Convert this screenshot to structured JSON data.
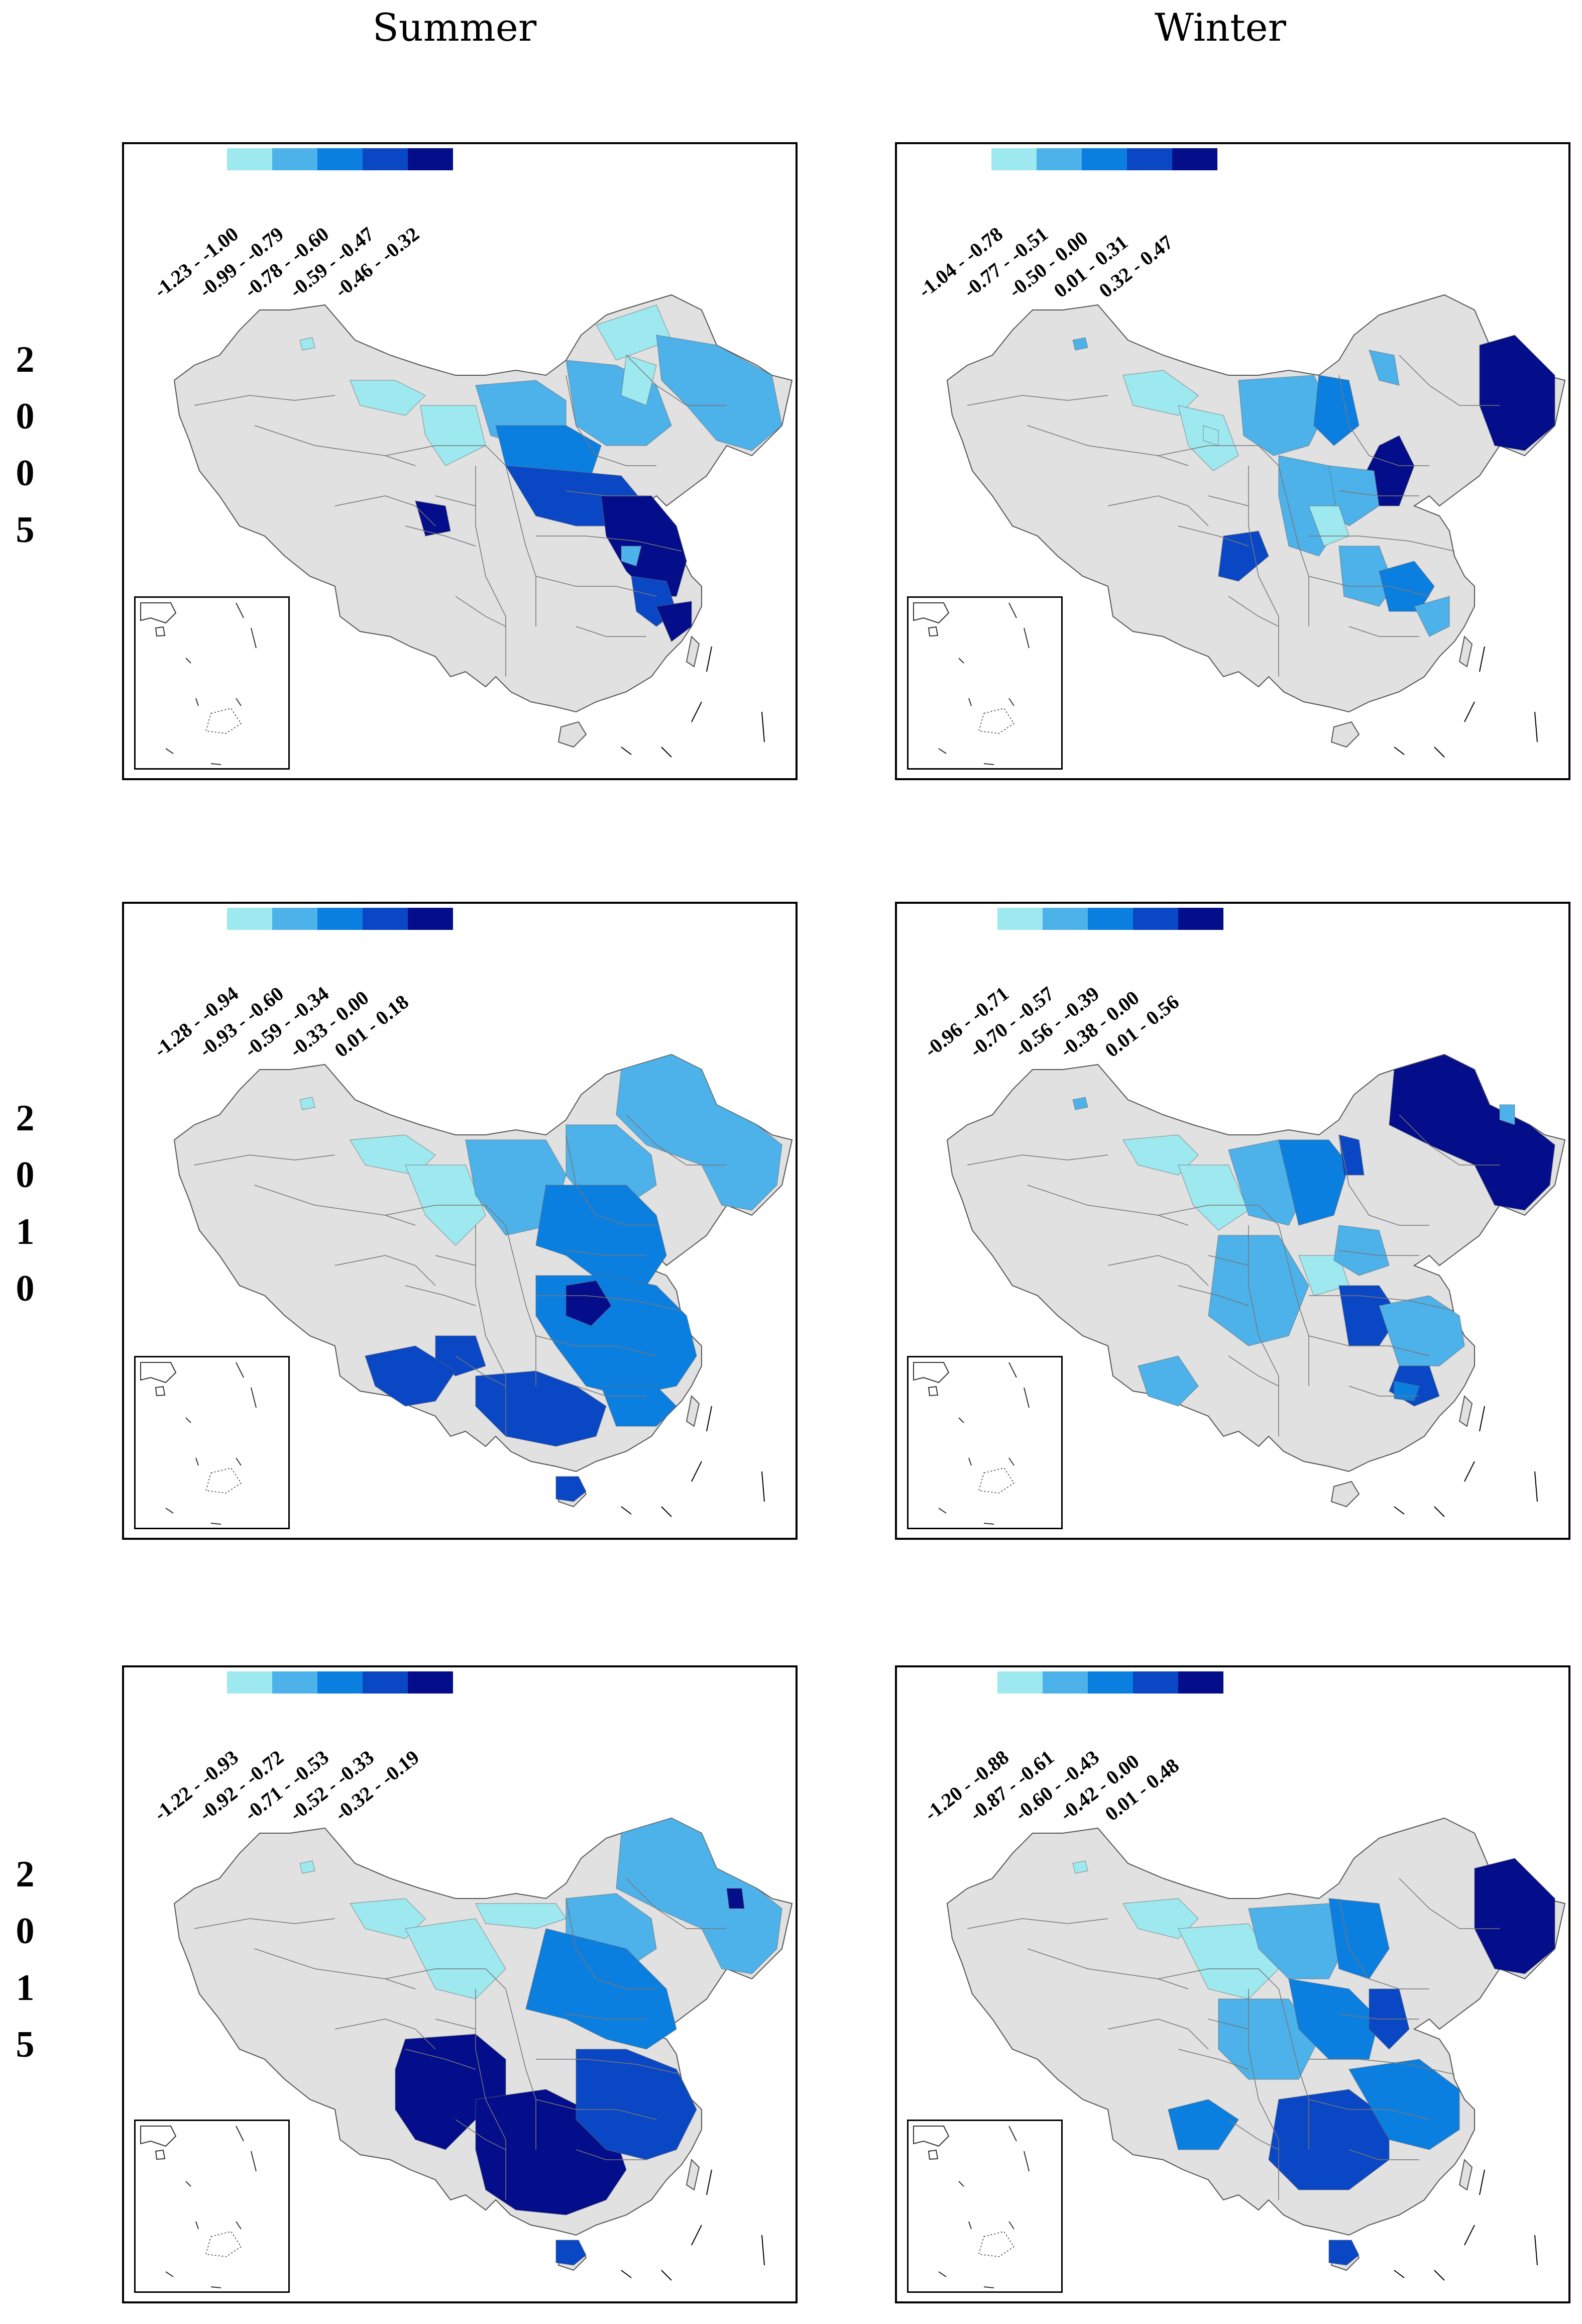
{
  "columns": [
    "Summer",
    "Winter"
  ],
  "rows": [
    [
      "2",
      "0",
      "0",
      "5"
    ],
    [
      "2",
      "0",
      "1",
      "0"
    ],
    [
      "2",
      "0",
      "1",
      "5"
    ]
  ],
  "colors": [
    "#9ee9ef",
    "#4db2ea",
    "#0b7fe0",
    "#0a47c4",
    "#040d8a"
  ],
  "base_color": "#e1e1e1",
  "panels": [
    {
      "legend": [
        "-1.23 - -1.00",
        "-0.99 - -0.79",
        "-0.78 - -0.60",
        "-0.59 - -0.47",
        "-0.46 - -0.32"
      ]
    },
    {
      "legend": [
        "-1.04 - -0.78",
        "-0.77 - -0.51",
        "-0.50 - 0.00",
        "0.01 - 0.31",
        "0.32 - 0.47"
      ]
    },
    {
      "legend": [
        "-1.28 - -0.94",
        "-0.93 - -0.60",
        "-0.59 - -0.34",
        "-0.33 - 0.00",
        "0.01 - 0.18"
      ]
    },
    {
      "legend": [
        "-0.96 - -0.71",
        "-0.70 - -0.57",
        "-0.56 - -0.39",
        "-0.38 - 0.00",
        "0.01 - 0.56"
      ]
    },
    {
      "legend": [
        "-1.22 - -0.93",
        "-0.92 - -0.72",
        "-0.71 - -0.53",
        "-0.52 - -0.33",
        "-0.32 - -0.19"
      ]
    },
    {
      "legend": [
        "-1.20 - -0.88",
        "-0.87 - -0.61",
        "-0.60 - -0.43",
        "-0.42 - 0.00",
        "0.01 - 0.48"
      ]
    }
  ]
}
